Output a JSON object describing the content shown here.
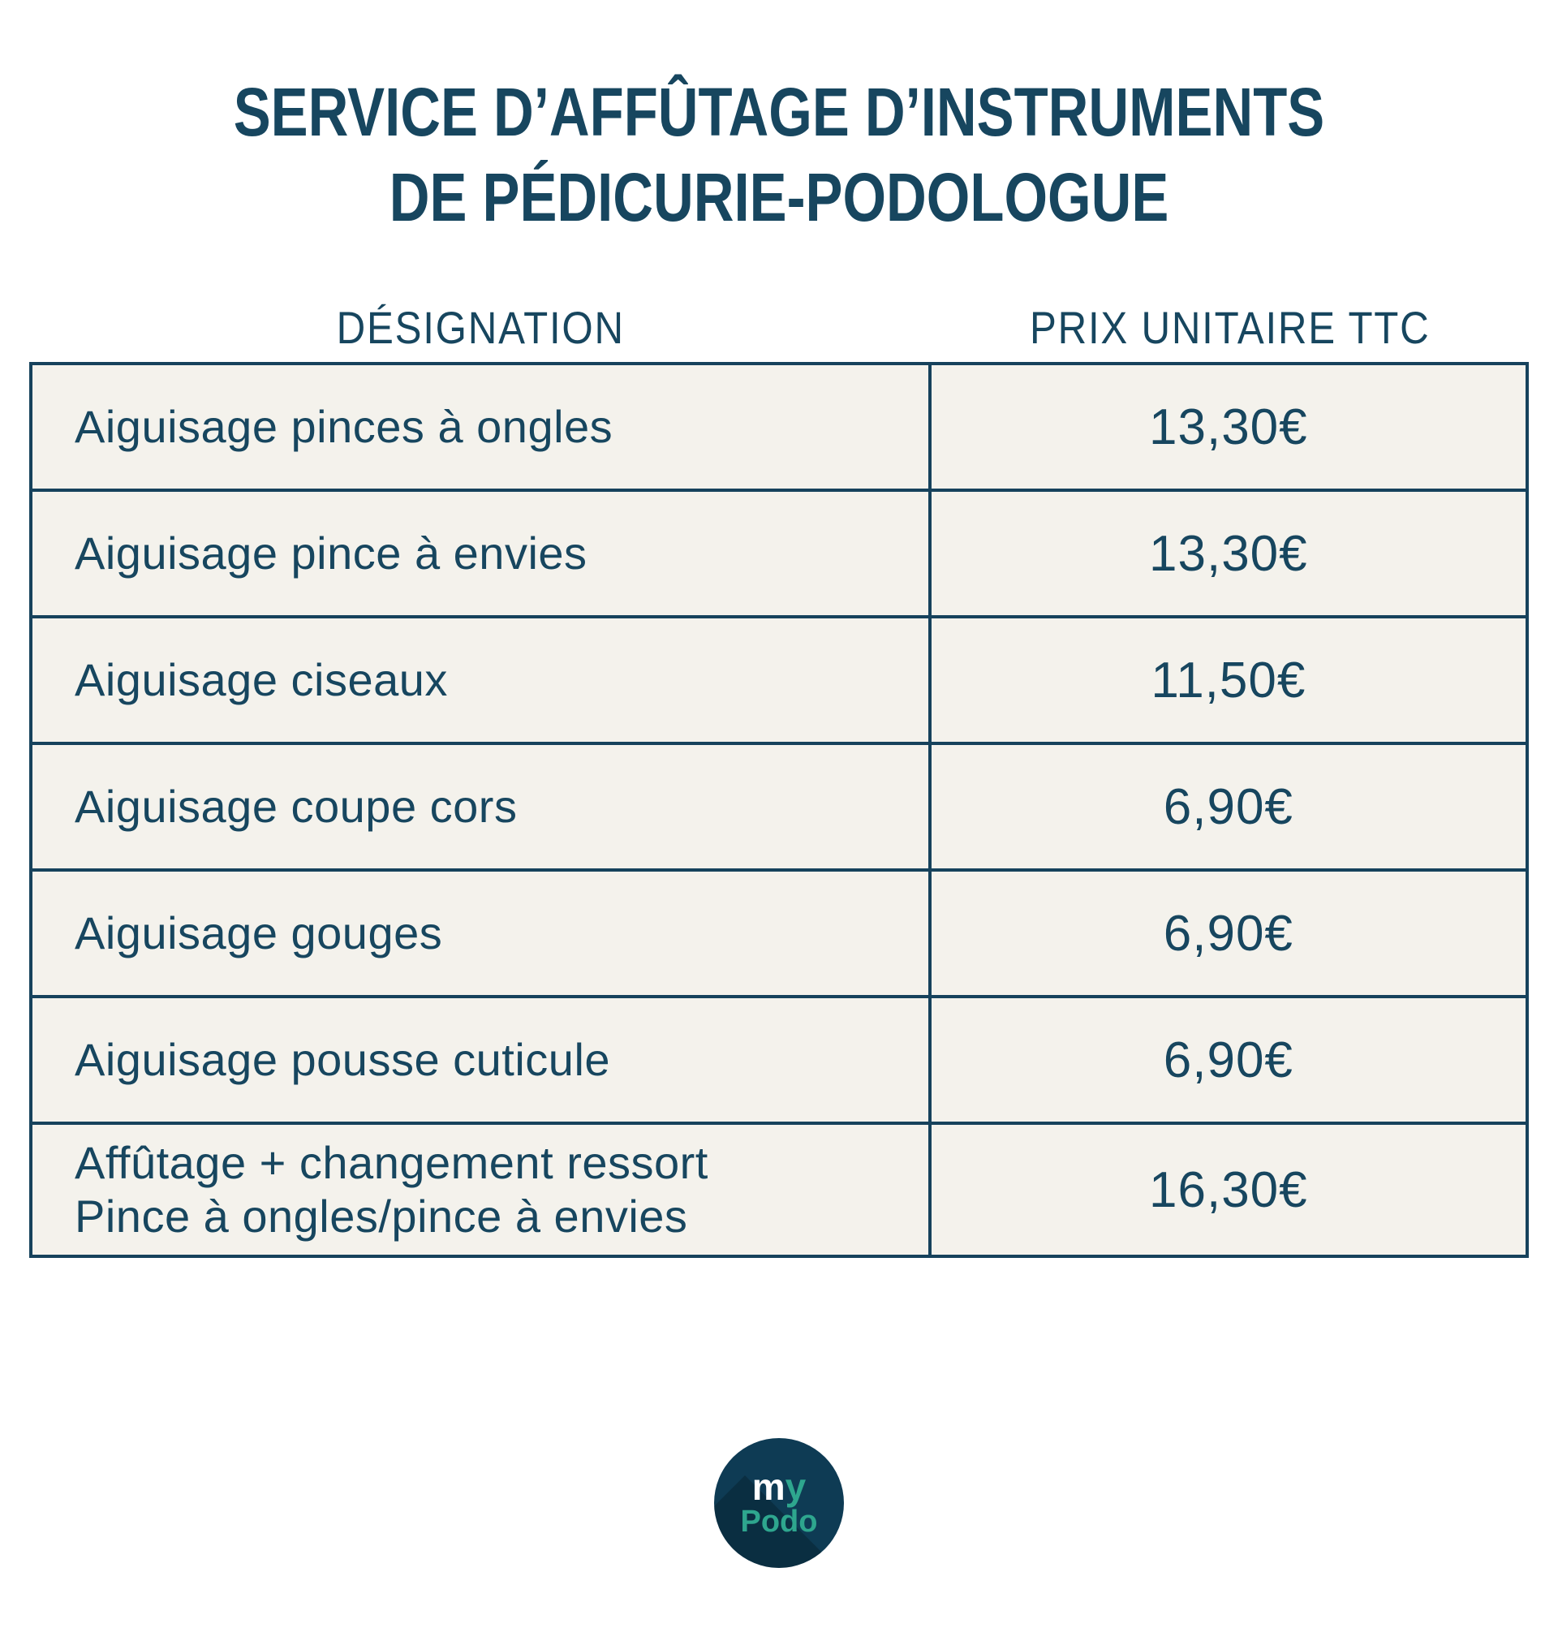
{
  "title": {
    "line1": "SERVICE D’AFFÛTAGE D’INSTRUMENTS",
    "line2": "DE PÉDICURIE-PODOLOGUE"
  },
  "table": {
    "columns": [
      "DÉSIGNATION",
      "PRIX UNITAIRE TTC"
    ],
    "rows": [
      {
        "designation": "Aiguisage pinces à ongles",
        "price": "13,30€"
      },
      {
        "designation": "Aiguisage pince à envies",
        "price": "13,30€"
      },
      {
        "designation": "Aiguisage ciseaux",
        "price": "11,50€"
      },
      {
        "designation": "Aiguisage coupe cors",
        "price": "6,90€"
      },
      {
        "designation": "Aiguisage gouges",
        "price": "6,90€"
      },
      {
        "designation": "Aiguisage pousse cuticule",
        "price": "6,90€"
      },
      {
        "designation": "Affûtage + changement ressort\nPince à ongles/pince à envies",
        "price": "16,30€"
      }
    ]
  },
  "logo": {
    "my_m": "m",
    "my_y": "y",
    "podo": "Podo"
  },
  "colors": {
    "navy_text": "#17465f",
    "table_border": "#16425c",
    "cell_background": "#f4f2ec",
    "page_background": "#ffffff",
    "logo_background": "#0e3b54",
    "logo_teal": "#2ea68e",
    "logo_white": "#ffffff"
  }
}
